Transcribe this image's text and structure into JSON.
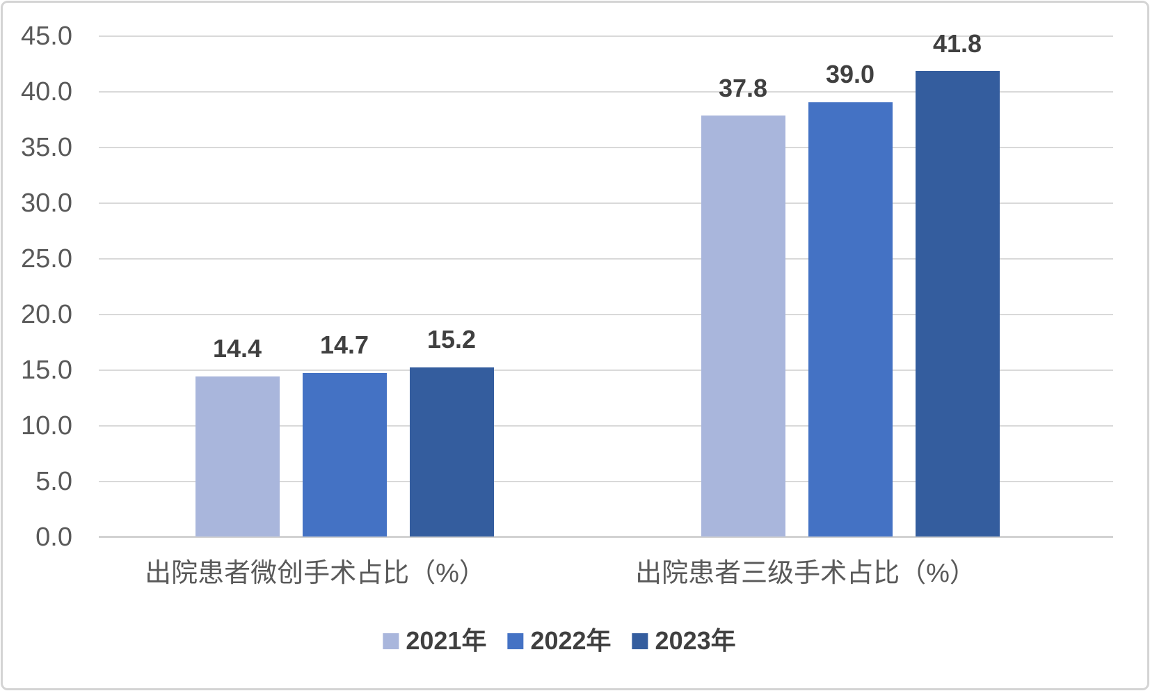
{
  "chart_data": {
    "type": "bar",
    "title": "",
    "categories": [
      "出院患者微创手术占比（%）",
      "出院患者三级手术占比（%）"
    ],
    "series": [
      {
        "name": "2021年",
        "color": "#a9b6dc",
        "values": [
          14.4,
          37.8
        ]
      },
      {
        "name": "2022年",
        "color": "#4472c4",
        "values": [
          14.7,
          39.0
        ]
      },
      {
        "name": "2023年",
        "color": "#345d9e",
        "values": [
          15.2,
          41.8
        ]
      }
    ],
    "value_labels": [
      [
        "14.4",
        "14.7",
        "15.2"
      ],
      [
        "37.8",
        "39.0",
        "41.8"
      ]
    ],
    "y_axis": {
      "min": 0,
      "max": 45,
      "step": 5,
      "tick_labels": [
        "0.0",
        "5.0",
        "10.0",
        "15.0",
        "20.0",
        "25.0",
        "30.0",
        "35.0",
        "40.0",
        "45.0"
      ]
    },
    "grid": true,
    "legend_position": "bottom",
    "legend_entries": [
      "2021年",
      "2022年",
      "2023年"
    ],
    "colors": {
      "gridline": "#d9d9d9",
      "axis_text": "#595959",
      "category_text": "#595959",
      "value_label_text": "#404040",
      "legend_text": "#3f3f3f",
      "frame_border": "#d4d4d4",
      "background": "#ffffff"
    }
  }
}
